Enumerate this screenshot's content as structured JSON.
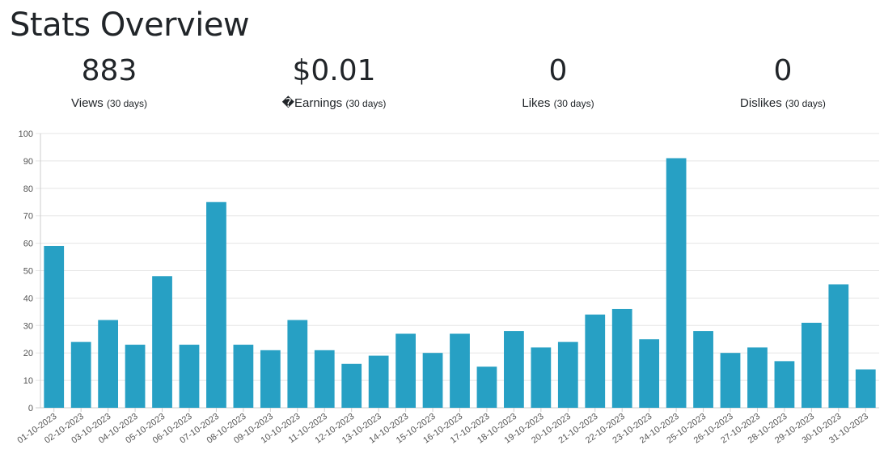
{
  "page": {
    "title": "Stats Overview"
  },
  "stats": [
    {
      "value": "883",
      "label": "Views",
      "period": "(30 days)"
    },
    {
      "value": "$0.01",
      "label": "�Earnings",
      "period": "(30 days)"
    },
    {
      "value": "0",
      "label": "Likes",
      "period": "(30 days)"
    },
    {
      "value": "0",
      "label": "Dislikes",
      "period": "(30 days)"
    }
  ],
  "colors": {
    "bar": "#27a0c4",
    "grid": "#e5e5e5",
    "axis_text": "#555555"
  },
  "chart_data": {
    "type": "bar",
    "categories": [
      "01-10-2023",
      "02-10-2023",
      "03-10-2023",
      "04-10-2023",
      "05-10-2023",
      "06-10-2023",
      "07-10-2023",
      "08-10-2023",
      "09-10-2023",
      "10-10-2023",
      "11-10-2023",
      "12-10-2023",
      "13-10-2023",
      "14-10-2023",
      "15-10-2023",
      "16-10-2023",
      "17-10-2023",
      "18-10-2023",
      "19-10-2023",
      "20-10-2023",
      "21-10-2023",
      "22-10-2023",
      "23-10-2023",
      "24-10-2023",
      "25-10-2023",
      "26-10-2023",
      "27-10-2023",
      "28-10-2023",
      "29-10-2023",
      "30-10-2023",
      "31-10-2023"
    ],
    "values": [
      59,
      24,
      32,
      23,
      48,
      23,
      75,
      23,
      21,
      32,
      21,
      16,
      19,
      27,
      20,
      27,
      15,
      28,
      22,
      24,
      34,
      36,
      25,
      91,
      28,
      20,
      22,
      17,
      31,
      45,
      14
    ],
    "ylim": [
      0,
      100
    ],
    "yticks": [
      0,
      10,
      20,
      30,
      40,
      50,
      60,
      70,
      80,
      90,
      100
    ],
    "grid": true
  }
}
